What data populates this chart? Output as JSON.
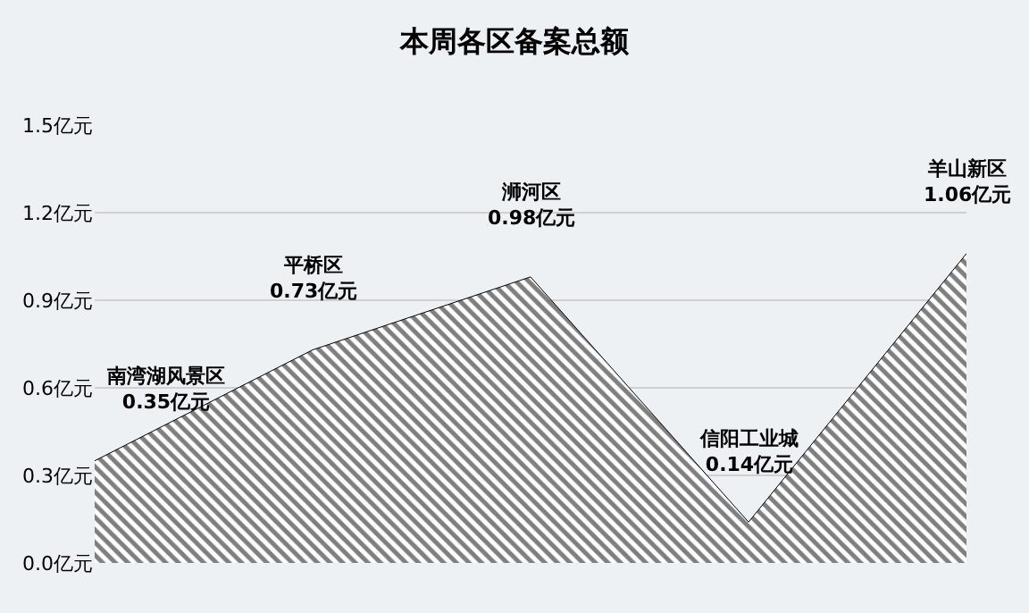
{
  "chart_data": {
    "type": "area",
    "title": "本周各区备案总额",
    "categories": [
      "南湾湖风景区",
      "平桥区",
      "浉河区",
      "信阳工业城",
      "羊山新区"
    ],
    "values": [
      0.35,
      0.73,
      0.98,
      0.14,
      1.06
    ],
    "value_labels": [
      "0.35亿元",
      "0.73亿元",
      "0.98亿元",
      "0.14亿元",
      "1.06亿元"
    ],
    "color": "#000000",
    "ylim": [
      0,
      1.5
    ],
    "yticks": [
      {
        "value": 0,
        "label": "0.0亿元"
      },
      {
        "value": 0.3,
        "label": "0.3亿元"
      },
      {
        "value": 0.6,
        "label": "0.6亿元"
      },
      {
        "value": 0.9,
        "label": "0.9亿元"
      },
      {
        "value": 1.2,
        "label": "1.2亿元"
      },
      {
        "value": 1.5,
        "label": "1.5亿元"
      }
    ],
    "grid": "y",
    "tick_labels": "y"
  }
}
